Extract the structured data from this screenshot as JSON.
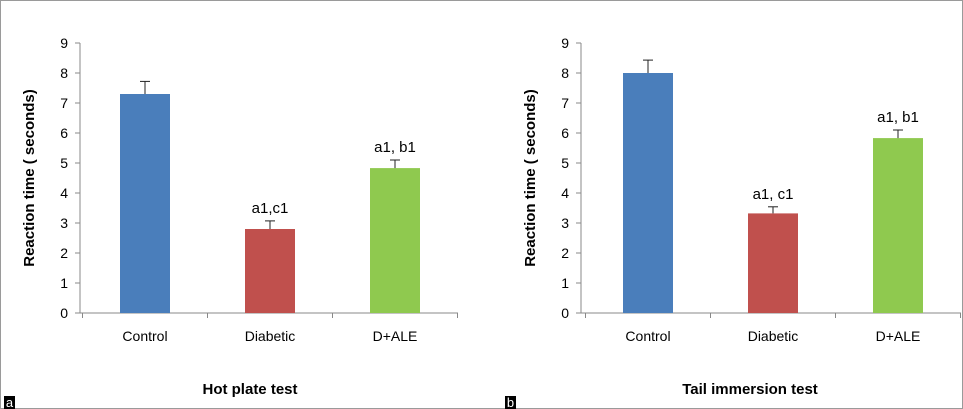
{
  "chart_data": [
    {
      "type": "bar",
      "panel_label": "a",
      "title": "Hot plate test",
      "ylabel": "Reaction time  ( seconds)",
      "xlabel": "",
      "ylim": [
        0,
        9
      ],
      "yticks": [
        0,
        1,
        2,
        3,
        4,
        5,
        6,
        7,
        8,
        9
      ],
      "categories": [
        "Control",
        "Diabetic",
        "D+ALE"
      ],
      "values": [
        7.3,
        2.8,
        4.83
      ],
      "errors": [
        0.42,
        0.27,
        0.27
      ],
      "annotations": [
        "",
        "a1,c1",
        "a1, b1"
      ],
      "colors": [
        "#4a7ebb",
        "#c0504d",
        "#8fc94f"
      ],
      "grid": false,
      "legend": "none"
    },
    {
      "type": "bar",
      "panel_label": "b",
      "title": "Tail immersion  test",
      "ylabel": "Reaction time  ( seconds)",
      "xlabel": "",
      "ylim": [
        0,
        9
      ],
      "yticks": [
        0,
        1,
        2,
        3,
        4,
        5,
        6,
        7,
        8,
        9
      ],
      "categories": [
        "Control",
        "Diabetic",
        "D+ALE"
      ],
      "values": [
        8.0,
        3.32,
        5.83
      ],
      "errors": [
        0.43,
        0.22,
        0.27
      ],
      "annotations": [
        "",
        "a1, c1",
        "a1, b1"
      ],
      "colors": [
        "#4a7ebb",
        "#c0504d",
        "#8fc94f"
      ],
      "grid": false,
      "legend": "none"
    }
  ]
}
